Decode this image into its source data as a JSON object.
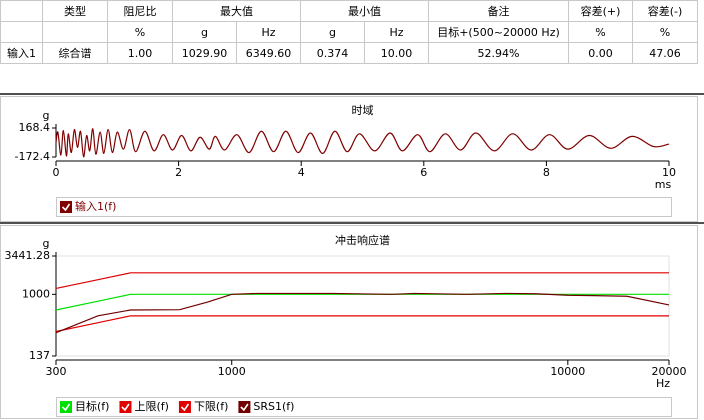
{
  "table": {
    "header": [
      "类型",
      "阻尼比",
      "最大值",
      "最小值",
      "备注",
      "容差(+)",
      "容差(-)"
    ],
    "subheader": [
      "%",
      "g",
      "Hz",
      "g",
      "Hz",
      "目标+(500~20000 Hz)",
      "%",
      "%"
    ],
    "rows": [
      [
        "输入1",
        "综合谱",
        "1.00",
        "1029.90",
        "6349.60",
        "0.374",
        "10.00",
        "52.94%",
        "0.00",
        "47.06"
      ]
    ]
  },
  "chart_data": [
    {
      "type": "line",
      "title": "时域",
      "y_label": "g",
      "x_label": "ms",
      "smooth": true,
      "xlim": [
        0,
        10
      ],
      "xticks": [
        0,
        2,
        4,
        6,
        8,
        10
      ],
      "ylim": [
        -172.4,
        168.4
      ],
      "yticks": [
        -172.4,
        168.4
      ],
      "x": [
        0,
        0.03,
        0.08,
        0.12,
        0.17,
        0.2,
        0.25,
        0.3,
        0.35,
        0.4,
        0.45,
        0.5,
        0.55,
        0.6,
        0.65,
        0.72,
        0.78,
        0.85,
        0.92,
        1.0,
        1.1,
        1.2,
        1.3,
        1.45,
        1.6,
        1.75,
        1.9,
        2.05,
        2.2,
        2.35,
        2.5,
        2.6,
        2.75,
        2.95,
        3.15,
        3.35,
        3.55,
        3.75,
        3.95,
        4.15,
        4.35,
        4.55,
        4.75,
        4.95,
        5.2,
        5.45,
        5.65,
        5.9,
        6.1,
        6.35,
        6.6,
        6.85,
        7.15,
        7.45,
        7.75,
        8.05,
        8.35,
        8.7,
        9.05,
        9.4,
        9.75,
        10
      ],
      "series": [
        {
          "name": "输入1(f)",
          "color": "#800000",
          "values": [
            0,
            120,
            -150,
            140,
            -160,
            100,
            -120,
            150,
            -60,
            130,
            -170,
            80,
            -100,
            160,
            -140,
            120,
            -130,
            150,
            -120,
            120,
            -80,
            150,
            -110,
            130,
            -100,
            90,
            -90,
            80,
            -100,
            60,
            -80,
            70,
            -90,
            90,
            -120,
            130,
            -110,
            130,
            -120,
            110,
            -130,
            130,
            -110,
            100,
            -100,
            110,
            -100,
            90,
            -110,
            100,
            -90,
            110,
            -100,
            100,
            -90,
            90,
            -80,
            80,
            -70,
            70,
            -50,
            -20
          ]
        }
      ]
    },
    {
      "type": "line",
      "title": "冲击响应谱",
      "y_label": "g",
      "x_label": "Hz",
      "xscale": "log",
      "yscale": "log",
      "xlim": [
        300,
        20000
      ],
      "xticks": [
        300,
        1000,
        10000,
        20000
      ],
      "ylim": [
        137,
        3441.28
      ],
      "yticks": [
        137,
        1000,
        3441.28
      ],
      "x": [
        300,
        400,
        500,
        700,
        850,
        1000,
        1200,
        2000,
        3000,
        3500,
        5000,
        6500,
        8000,
        10000,
        12000,
        15000,
        20000
      ],
      "series": [
        {
          "name": "目标(f)",
          "color": "#00e000",
          "values": [
            604,
            802,
            1000,
            1000,
            1000,
            1000,
            1000,
            1000,
            1000,
            1000,
            1000,
            1000,
            1000,
            1000,
            1000,
            1000,
            1000
          ]
        },
        {
          "name": "上限(f)",
          "color": "#e00000",
          "values": [
            1208,
            1604,
            2000,
            2000,
            2000,
            2000,
            2000,
            2000,
            2000,
            2000,
            2000,
            2000,
            2000,
            2000,
            2000,
            2000,
            2000
          ]
        },
        {
          "name": "下限(f)",
          "color": "#e00000",
          "values": [
            302,
            401,
            500,
            500,
            500,
            500,
            500,
            500,
            500,
            500,
            500,
            500,
            500,
            500,
            500,
            500,
            500
          ]
        },
        {
          "name": "SRS1(f)",
          "color": "#700000",
          "values": [
            290,
            500,
            604,
            610,
            783,
            1000,
            1030,
            1030,
            1000,
            1030,
            1000,
            1030,
            1020,
            970,
            960,
            940,
            711
          ]
        }
      ]
    }
  ]
}
